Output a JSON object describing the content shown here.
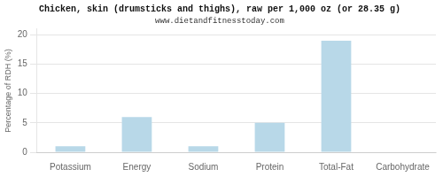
{
  "chart_data": {
    "type": "bar",
    "title": "Chicken, skin (drumsticks and thighs), raw per 1,000 oz (or 28.35 g)",
    "subtitle": "www.dietandfitnesstoday.com",
    "categories": [
      "Potassium",
      "Energy",
      "Sodium",
      "Protein",
      "Total-Fat",
      "Carbohydrate"
    ],
    "values": [
      1,
      6,
      1,
      5,
      19,
      0
    ],
    "color": "#b8d8e8",
    "ylabel": "Percentage of RDH (%)",
    "ylim": [
      0,
      21
    ],
    "yticks": [
      0,
      5,
      10,
      15,
      20
    ],
    "grid": true
  }
}
